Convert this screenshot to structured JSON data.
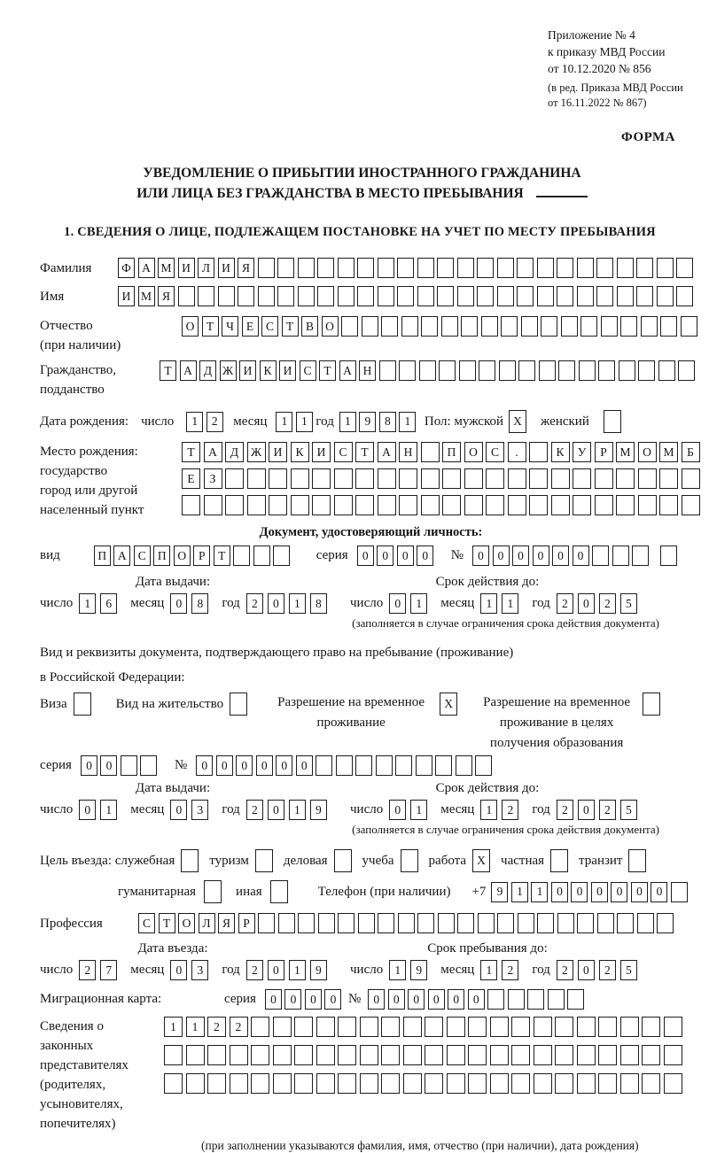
{
  "header": {
    "ref_lines": [
      "Приложение № 4",
      "к приказу МВД России",
      "от 10.12.2020 № 856"
    ],
    "ref_lines_small": [
      "(в ред. Приказа МВД России",
      "от 16.11.2022 № 867)"
    ],
    "forma": "ФОРМА"
  },
  "title": {
    "line1": "УВЕДОМЛЕНИЕ О ПРИБЫТИИ ИНОСТРАННОГО ГРАЖДАНИНА",
    "line2": "ИЛИ ЛИЦА БЕЗ ГРАЖДАНСТВА В МЕСТО ПРЕБЫВАНИЯ"
  },
  "section1_title": "1. СВЕДЕНИЯ О ЛИЦЕ, ПОДЛЕЖАЩЕМ ПОСТАНОВКЕ НА УЧЕТ ПО МЕСТУ ПРЕБЫВАНИЯ",
  "labels": {
    "surname": "Фамилия",
    "given_name": "Имя",
    "patronymic1": "Отчество",
    "patronymic2": "(при наличии)",
    "citizenship1": "Гражданство,",
    "citizenship2": "подданство",
    "birth_date": "Дата рождения:",
    "day": "число",
    "month": "месяц",
    "year": "год",
    "sex_male": "Пол: мужской",
    "sex_female": "женский",
    "birthplace1": "Место рождения:",
    "birthplace2": "государство",
    "birthplace3": "город или другой",
    "birthplace4": "населенный пункт",
    "doc_header": "Документ, удостоверяющий личность:",
    "doc_type": "вид",
    "series": "серия",
    "number_sign": "№",
    "issue_date": "Дата выдачи:",
    "valid_until": "Срок действия до:",
    "validity_note": "(заполняется в случае ограничения срока действия документа)",
    "resid_doc_line1": "Вид и реквизиты документа, подтверждающего право на пребывание (проживание)",
    "resid_doc_line2": "в Российской Федерации:",
    "visa": "Виза",
    "residence_permit": "Вид на жительство",
    "temp_residence1": "Разрешение на временное",
    "temp_residence2": "проживание",
    "temp_residence_edu1": "Разрешение на временное",
    "temp_residence_edu2": "проживание в целях",
    "temp_residence_edu3": "получения образования",
    "purpose_lead": "Цель въезда: служебная",
    "tourism": "туризм",
    "business": "деловая",
    "study": "учеба",
    "work": "работа",
    "private": "частная",
    "transit": "транзит",
    "humanitarian": "гуманитарная",
    "other": "иная",
    "phone": "Телефон (при наличии)",
    "phone_prefix": "+7",
    "profession": "Профессия",
    "entry_date": "Дата въезда:",
    "stay_until": "Срок пребывания до:",
    "migration_card": "Миграционная карта:",
    "guardians1": "Сведения о",
    "guardians2": "законных",
    "guardians3": "представителях",
    "guardians4": "(родителях,",
    "guardians5": "усыновителях,",
    "guardians6": "попечителях)",
    "guardians_note": "(при заполнении указываются фамилия, имя, отчество (при наличии), дата рождения)"
  },
  "cells": {
    "surname": {
      "count": 29,
      "value": "ФАМИЛИЯ"
    },
    "given_name": {
      "count": 29,
      "value": "ИМЯ"
    },
    "patronymic": {
      "count": 26,
      "value": "ОТЧЕСТВО"
    },
    "citizenship": {
      "count": 27,
      "value": "ТАДЖИКИСТАН"
    },
    "birth_day": {
      "count": 2,
      "value": "12"
    },
    "birth_month": {
      "count": 2,
      "value": "11"
    },
    "birth_year": {
      "count": 4,
      "value": "1981"
    },
    "sex_male": {
      "count": 1,
      "value": "X"
    },
    "sex_female": {
      "count": 1,
      "value": ""
    },
    "birthplace_row1": {
      "count": 24,
      "value": "ТАДЖИКИСТАН ПОС. КУРМОМБ"
    },
    "birthplace_row2": {
      "count": 24,
      "value": "ЕЗ"
    },
    "birthplace_row3": {
      "count": 24,
      "value": ""
    },
    "doc_type": {
      "count": 10,
      "value": "ПАСПОРТ"
    },
    "doc_series": {
      "count": 4,
      "value": "0000"
    },
    "doc_number": {
      "count": 10,
      "value": "000000"
    },
    "doc_issue_day": {
      "count": 2,
      "value": "16"
    },
    "doc_issue_month": {
      "count": 2,
      "value": "08"
    },
    "doc_issue_year": {
      "count": 4,
      "value": "2018"
    },
    "doc_valid_day": {
      "count": 2,
      "value": "01"
    },
    "doc_valid_month": {
      "count": 2,
      "value": "11"
    },
    "doc_valid_year": {
      "count": 4,
      "value": "2025"
    },
    "cb_visa": {
      "count": 1,
      "value": ""
    },
    "cb_residence_permit": {
      "count": 1,
      "value": ""
    },
    "cb_temp_residence": {
      "count": 1,
      "value": "X"
    },
    "cb_temp_residence_edu": {
      "count": 1,
      "value": ""
    },
    "res_series": {
      "count": 4,
      "value": "00"
    },
    "res_number": {
      "count": 15,
      "value": "000000"
    },
    "res_issue_day": {
      "count": 2,
      "value": "01"
    },
    "res_issue_month": {
      "count": 2,
      "value": "03"
    },
    "res_issue_year": {
      "count": 4,
      "value": "2019"
    },
    "res_valid_day": {
      "count": 2,
      "value": "01"
    },
    "res_valid_month": {
      "count": 2,
      "value": "12"
    },
    "res_valid_year": {
      "count": 4,
      "value": "2025"
    },
    "cb_official": {
      "count": 1,
      "value": ""
    },
    "cb_tourism": {
      "count": 1,
      "value": ""
    },
    "cb_business": {
      "count": 1,
      "value": ""
    },
    "cb_study": {
      "count": 1,
      "value": ""
    },
    "cb_work": {
      "count": 1,
      "value": "X"
    },
    "cb_private": {
      "count": 1,
      "value": ""
    },
    "cb_transit": {
      "count": 1,
      "value": ""
    },
    "cb_humanitarian": {
      "count": 1,
      "value": ""
    },
    "cb_other": {
      "count": 1,
      "value": ""
    },
    "phone": {
      "count": 10,
      "value": "911000000"
    },
    "profession": {
      "count": 27,
      "value": "СТОЛЯР"
    },
    "entry_day": {
      "count": 2,
      "value": "27"
    },
    "entry_month": {
      "count": 2,
      "value": "03"
    },
    "entry_year": {
      "count": 4,
      "value": "2019"
    },
    "stay_day": {
      "count": 2,
      "value": "19"
    },
    "stay_month": {
      "count": 2,
      "value": "12"
    },
    "stay_year": {
      "count": 4,
      "value": "2025"
    },
    "mig_series": {
      "count": 4,
      "value": "0000"
    },
    "mig_number": {
      "count": 11,
      "value": "000000"
    },
    "guardians_row1": {
      "count": 24,
      "value": "1122"
    },
    "guardians_row2": {
      "count": 24,
      "value": ""
    },
    "guardians_row3": {
      "count": 24,
      "value": ""
    }
  }
}
